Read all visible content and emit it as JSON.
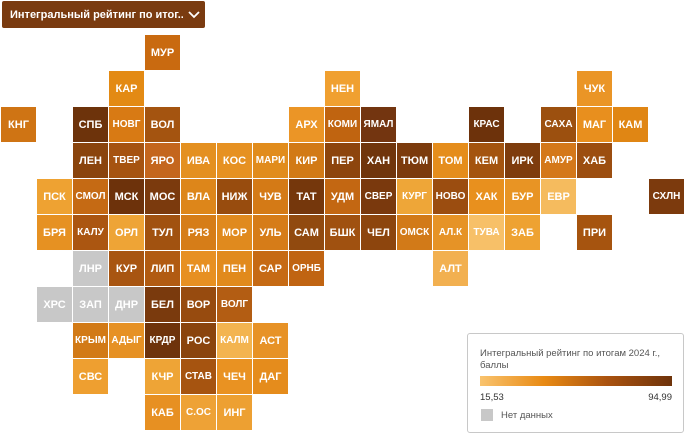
{
  "dropdown": {
    "label": "Интегральный рейтинг по итог...",
    "icon": "chevron-down-icon"
  },
  "legend": {
    "title": "Интегральный рейтинг по итогам 2024 г., баллы",
    "min": "15,53",
    "max": "94,99",
    "no_data": "Нет данных",
    "no_data_color": "#c8c8c8",
    "scale_colors": [
      "#f9c36e",
      "#e88a14",
      "#a9520f",
      "#6e330b"
    ]
  },
  "chart_data": {
    "type": "heatmap",
    "value_range": [
      15.53,
      94.99
    ],
    "tiles": [
      {
        "label": "МУР",
        "col": 4,
        "row": 0,
        "color": "#c96a10"
      },
      {
        "label": "КАР",
        "col": 3,
        "row": 1,
        "color": "#e38a14"
      },
      {
        "label": "НЕН",
        "col": 9,
        "row": 1,
        "color": "#f0a030"
      },
      {
        "label": "ЧУК",
        "col": 16,
        "row": 1,
        "color": "#ea9526"
      },
      {
        "label": "КНГ",
        "col": 0,
        "row": 2,
        "color": "#cf7414"
      },
      {
        "label": "СПБ",
        "col": 2,
        "row": 2,
        "color": "#6d330b"
      },
      {
        "label": "НОВГ",
        "col": 3,
        "row": 2,
        "color": "#d87a14"
      },
      {
        "label": "ВОЛ",
        "col": 4,
        "row": 2,
        "color": "#a45410"
      },
      {
        "label": "АРХ",
        "col": 8,
        "row": 2,
        "color": "#eb9526"
      },
      {
        "label": "КОМИ",
        "col": 9,
        "row": 2,
        "color": "#c06410"
      },
      {
        "label": "ЯМАЛ",
        "col": 10,
        "row": 2,
        "color": "#733510"
      },
      {
        "label": "КРАС",
        "col": 13,
        "row": 2,
        "color": "#6d320b"
      },
      {
        "label": "САХА",
        "col": 15,
        "row": 2,
        "color": "#9c500f"
      },
      {
        "label": "МАГ",
        "col": 16,
        "row": 2,
        "color": "#e88f1e"
      },
      {
        "label": "КАМ",
        "col": 17,
        "row": 2,
        "color": "#e08614"
      },
      {
        "label": "ЛЕН",
        "col": 2,
        "row": 3,
        "color": "#8a440d"
      },
      {
        "label": "ТВЕР",
        "col": 3,
        "row": 3,
        "color": "#a65310"
      },
      {
        "label": "ЯРО",
        "col": 4,
        "row": 3,
        "color": "#c4661d"
      },
      {
        "label": "ИВА",
        "col": 5,
        "row": 3,
        "color": "#e49020"
      },
      {
        "label": "КОС",
        "col": 6,
        "row": 3,
        "color": "#e69122"
      },
      {
        "label": "МАРИ",
        "col": 7,
        "row": 3,
        "color": "#e18c1c"
      },
      {
        "label": "КИР",
        "col": 8,
        "row": 3,
        "color": "#d27a16"
      },
      {
        "label": "ПЕР",
        "col": 9,
        "row": 3,
        "color": "#8d450d"
      },
      {
        "label": "ХАН",
        "col": 10,
        "row": 3,
        "color": "#70350c"
      },
      {
        "label": "ТЮМ",
        "col": 11,
        "row": 3,
        "color": "#7c3b0d"
      },
      {
        "label": "ТОМ",
        "col": 12,
        "row": 3,
        "color": "#e58d1c"
      },
      {
        "label": "КЕМ",
        "col": 13,
        "row": 3,
        "color": "#a4540f"
      },
      {
        "label": "ИРК",
        "col": 14,
        "row": 3,
        "color": "#7e3c0d"
      },
      {
        "label": "АМУР",
        "col": 15,
        "row": 3,
        "color": "#d4781a"
      },
      {
        "label": "ХАБ",
        "col": 16,
        "row": 3,
        "color": "#9c4e10"
      },
      {
        "label": "ПСК",
        "col": 1,
        "row": 4,
        "color": "#eea232"
      },
      {
        "label": "СМОЛ",
        "col": 2,
        "row": 4,
        "color": "#c56a14"
      },
      {
        "label": "МСК",
        "col": 3,
        "row": 4,
        "color": "#6d320b"
      },
      {
        "label": "МОС",
        "col": 4,
        "row": 4,
        "color": "#7b3a0d"
      },
      {
        "label": "ВЛА",
        "col": 5,
        "row": 4,
        "color": "#dd861a"
      },
      {
        "label": "НИЖ",
        "col": 6,
        "row": 4,
        "color": "#984c0e"
      },
      {
        "label": "ЧУВ",
        "col": 7,
        "row": 4,
        "color": "#d47a16"
      },
      {
        "label": "ТАТ",
        "col": 8,
        "row": 4,
        "color": "#75370c"
      },
      {
        "label": "УДМ",
        "col": 9,
        "row": 4,
        "color": "#c36712"
      },
      {
        "label": "СВЕР",
        "col": 10,
        "row": 4,
        "color": "#7a390d"
      },
      {
        "label": "КУРГ",
        "col": 11,
        "row": 4,
        "color": "#eea638"
      },
      {
        "label": "НОВО",
        "col": 12,
        "row": 4,
        "color": "#9b4d10"
      },
      {
        "label": "ХАК",
        "col": 13,
        "row": 4,
        "color": "#e8901e"
      },
      {
        "label": "БУР",
        "col": 14,
        "row": 4,
        "color": "#e89424"
      },
      {
        "label": "ЕВР",
        "col": 15,
        "row": 4,
        "color": "#f5bb5e"
      },
      {
        "label": "СХЛН",
        "col": 18,
        "row": 4,
        "color": "#7c3a0d"
      },
      {
        "label": "БРЯ",
        "col": 1,
        "row": 5,
        "color": "#e69122"
      },
      {
        "label": "КАЛУ",
        "col": 2,
        "row": 5,
        "color": "#ab5611"
      },
      {
        "label": "ОРЛ",
        "col": 3,
        "row": 5,
        "color": "#eea436"
      },
      {
        "label": "ТУЛ",
        "col": 4,
        "row": 5,
        "color": "#a15210"
      },
      {
        "label": "РЯЗ",
        "col": 5,
        "row": 5,
        "color": "#d67d18"
      },
      {
        "label": "МОР",
        "col": 6,
        "row": 5,
        "color": "#e08a1e"
      },
      {
        "label": "УЛЬ",
        "col": 7,
        "row": 5,
        "color": "#d67c18"
      },
      {
        "label": "САМ",
        "col": 8,
        "row": 5,
        "color": "#914a0f"
      },
      {
        "label": "БШК",
        "col": 9,
        "row": 5,
        "color": "#a05110"
      },
      {
        "label": "ЧЕЛ",
        "col": 10,
        "row": 5,
        "color": "#8d450d"
      },
      {
        "label": "ОМСК",
        "col": 11,
        "row": 5,
        "color": "#d27a18"
      },
      {
        "label": "АЛ.К",
        "col": 12,
        "row": 5,
        "color": "#e69326"
      },
      {
        "label": "ТУВА",
        "col": 13,
        "row": 5,
        "color": "#f7c068"
      },
      {
        "label": "ЗАБ",
        "col": 14,
        "row": 5,
        "color": "#eea232"
      },
      {
        "label": "ПРИ",
        "col": 16,
        "row": 5,
        "color": "#a6540f"
      },
      {
        "label": "ЛНР",
        "col": 2,
        "row": 6,
        "color": "#c8c8c8"
      },
      {
        "label": "КУР",
        "col": 3,
        "row": 6,
        "color": "#a85511"
      },
      {
        "label": "ЛИП",
        "col": 4,
        "row": 6,
        "color": "#b15b12"
      },
      {
        "label": "ТАМ",
        "col": 5,
        "row": 6,
        "color": "#e79022"
      },
      {
        "label": "ПЕН",
        "col": 6,
        "row": 6,
        "color": "#e18a1c"
      },
      {
        "label": "САР",
        "col": 7,
        "row": 6,
        "color": "#c66a14"
      },
      {
        "label": "ОРНБ",
        "col": 8,
        "row": 6,
        "color": "#c06412"
      },
      {
        "label": "АЛТ",
        "col": 12,
        "row": 6,
        "color": "#f2b050"
      },
      {
        "label": "ХРС",
        "col": 1,
        "row": 7,
        "color": "#c8c8c8"
      },
      {
        "label": "ЗАП",
        "col": 2,
        "row": 7,
        "color": "#c8c8c8"
      },
      {
        "label": "ДНР",
        "col": 3,
        "row": 7,
        "color": "#c8c8c8"
      },
      {
        "label": "БЕЛ",
        "col": 4,
        "row": 7,
        "color": "#7a3a0d"
      },
      {
        "label": "ВОР",
        "col": 5,
        "row": 7,
        "color": "#974b0f"
      },
      {
        "label": "ВОЛГ",
        "col": 6,
        "row": 7,
        "color": "#b35d13"
      },
      {
        "label": "КРЫМ",
        "col": 2,
        "row": 8,
        "color": "#d27a16"
      },
      {
        "label": "АДЫГ",
        "col": 3,
        "row": 8,
        "color": "#e69124"
      },
      {
        "label": "КРДР",
        "col": 4,
        "row": 8,
        "color": "#6e330b"
      },
      {
        "label": "РОС",
        "col": 5,
        "row": 8,
        "color": "#8a440d"
      },
      {
        "label": "КАЛМ",
        "col": 6,
        "row": 8,
        "color": "#f3b450"
      },
      {
        "label": "АСТ",
        "col": 7,
        "row": 8,
        "color": "#e79226"
      },
      {
        "label": "СВС",
        "col": 2,
        "row": 9,
        "color": "#ee9f30"
      },
      {
        "label": "КЧР",
        "col": 4,
        "row": 9,
        "color": "#eea436"
      },
      {
        "label": "СТАВ",
        "col": 5,
        "row": 9,
        "color": "#a65410"
      },
      {
        "label": "ЧЕЧ",
        "col": 6,
        "row": 9,
        "color": "#e99222"
      },
      {
        "label": "ДАГ",
        "col": 7,
        "row": 9,
        "color": "#e58c1c"
      },
      {
        "label": "КАБ",
        "col": 4,
        "row": 10,
        "color": "#e79022"
      },
      {
        "label": "С.ОС",
        "col": 5,
        "row": 10,
        "color": "#eea236"
      },
      {
        "label": "ИНГ",
        "col": 6,
        "row": 10,
        "color": "#eda032"
      }
    ]
  }
}
